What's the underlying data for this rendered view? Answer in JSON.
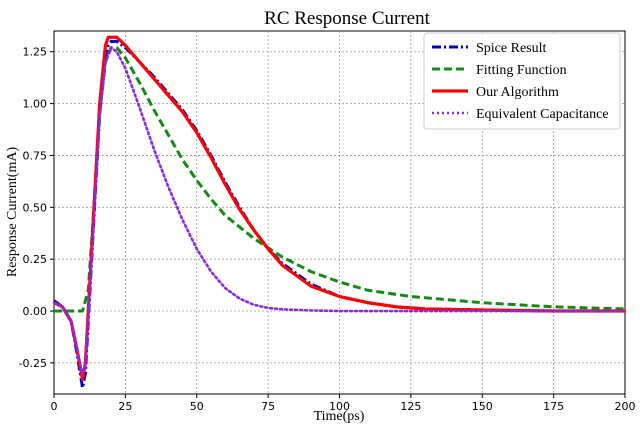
{
  "chart_data": {
    "type": "line",
    "title": "RC Response Current",
    "xlabel": "Time(ps)",
    "ylabel": "Response Current(mA)",
    "xlim": [
      0,
      200
    ],
    "ylim": [
      -0.4,
      1.35
    ],
    "xticks": [
      0,
      25,
      50,
      75,
      100,
      125,
      150,
      175,
      200
    ],
    "yticks": [
      -0.25,
      0.0,
      0.25,
      0.5,
      0.75,
      1.0,
      1.25
    ],
    "grid": true,
    "legend_position": "top-right",
    "series": [
      {
        "name": "Spice Result",
        "color": "#0000cc",
        "style": "dashdot",
        "x": [
          0,
          3,
          6,
          8,
          10,
          11,
          12,
          14,
          16,
          18,
          19,
          20,
          22,
          25,
          30,
          35,
          40,
          45,
          50,
          55,
          60,
          65,
          70,
          75,
          80,
          90,
          100,
          110,
          120,
          130,
          150,
          175,
          200
        ],
        "y": [
          0.05,
          0.02,
          -0.05,
          -0.2,
          -0.37,
          -0.3,
          -0.05,
          0.45,
          0.95,
          1.22,
          1.28,
          1.3,
          1.3,
          1.27,
          1.2,
          1.13,
          1.05,
          0.97,
          0.87,
          0.75,
          0.62,
          0.5,
          0.39,
          0.3,
          0.23,
          0.13,
          0.07,
          0.04,
          0.02,
          0.01,
          0.005,
          0.0,
          0.0
        ]
      },
      {
        "name": "Fitting Function",
        "color": "#138a13",
        "style": "dashed",
        "x": [
          0,
          10,
          12,
          14,
          16,
          18,
          20,
          22,
          25,
          30,
          35,
          40,
          45,
          50,
          55,
          60,
          70,
          80,
          90,
          100,
          110,
          125,
          150,
          175,
          200
        ],
        "y": [
          0.0,
          0.0,
          0.1,
          0.5,
          0.95,
          1.2,
          1.27,
          1.27,
          1.22,
          1.1,
          0.97,
          0.85,
          0.73,
          0.63,
          0.54,
          0.46,
          0.35,
          0.26,
          0.19,
          0.14,
          0.1,
          0.07,
          0.04,
          0.02,
          0.01
        ]
      },
      {
        "name": "Our Algorithm",
        "color": "#ff0000",
        "style": "solid",
        "x": [
          0,
          3,
          6,
          8,
          10,
          11,
          12,
          14,
          16,
          18,
          19,
          20,
          22,
          25,
          30,
          35,
          40,
          45,
          50,
          55,
          60,
          65,
          70,
          75,
          80,
          90,
          100,
          110,
          120,
          130,
          150,
          175,
          200
        ],
        "y": [
          0.04,
          0.02,
          -0.05,
          -0.18,
          -0.33,
          -0.25,
          0.0,
          0.5,
          1.0,
          1.28,
          1.32,
          1.32,
          1.32,
          1.28,
          1.2,
          1.12,
          1.04,
          0.96,
          0.86,
          0.74,
          0.61,
          0.49,
          0.39,
          0.3,
          0.22,
          0.12,
          0.07,
          0.04,
          0.02,
          0.01,
          0.005,
          0.0,
          0.0
        ]
      },
      {
        "name": "Equivalent Capacitance",
        "color": "#8a2be2",
        "style": "dotted",
        "x": [
          0,
          3,
          6,
          8,
          10,
          11,
          12,
          14,
          16,
          18,
          20,
          22,
          25,
          30,
          35,
          40,
          45,
          50,
          55,
          60,
          65,
          70,
          75,
          80,
          90,
          100,
          125,
          150,
          200
        ],
        "y": [
          0.04,
          0.02,
          -0.05,
          -0.18,
          -0.31,
          -0.25,
          -0.02,
          0.45,
          0.95,
          1.2,
          1.27,
          1.25,
          1.17,
          0.98,
          0.78,
          0.6,
          0.44,
          0.3,
          0.19,
          0.11,
          0.06,
          0.03,
          0.015,
          0.008,
          0.003,
          0.0,
          0.0,
          0.0,
          0.0
        ]
      }
    ]
  }
}
